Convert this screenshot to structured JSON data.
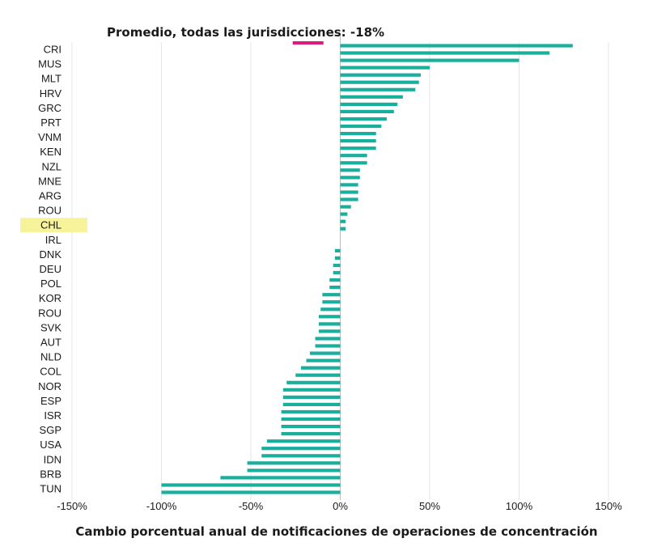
{
  "chart_data": {
    "type": "bar",
    "orientation": "horizontal",
    "title": "Promedio, todas las jurisdicciones: -18%",
    "xlabel": "Cambio porcentual anual de notificaciones de operaciones de concentración",
    "ylabel": "",
    "xlim": [
      -150,
      150
    ],
    "xticks": [
      -150,
      -100,
      -50,
      0,
      50,
      100,
      150
    ],
    "xtick_labels": [
      "-150%",
      "-100%",
      "-50%",
      "0%",
      "50%",
      "100%",
      "150%"
    ],
    "grid": "vertical",
    "legend": "none",
    "average_value": -18,
    "highlighted_category": "CHL",
    "categories": [
      "CRI",
      "MUS",
      "MLT",
      "HRV",
      "GRC",
      "PRT",
      "VNM",
      "KEN",
      "NZL",
      "MNE",
      "ARG",
      "ROU",
      "CHL",
      "IRL",
      "DNK",
      "DEU",
      "POL",
      "KOR",
      "ROU",
      "SVK",
      "AUT",
      "NLD",
      "COL",
      "NOR",
      "ESP",
      "ISR",
      "SGP",
      "USA",
      "IDN",
      "BRB",
      "TUN"
    ],
    "series": [
      {
        "values": [
          [
            130,
            117
          ],
          [
            100,
            50
          ],
          [
            45,
            44
          ],
          [
            42,
            35
          ],
          [
            32,
            30
          ],
          [
            26,
            23
          ],
          [
            20,
            20
          ],
          [
            20,
            15
          ],
          [
            15,
            11
          ],
          [
            11,
            10
          ],
          [
            10,
            10
          ],
          [
            6,
            4
          ],
          [
            3,
            3
          ],
          [
            0,
            0
          ],
          [
            -3,
            -3
          ],
          [
            -4,
            -4
          ],
          [
            -6,
            -6
          ],
          [
            -10,
            -10
          ],
          [
            -11,
            -12
          ],
          [
            -12,
            -12
          ],
          [
            -14,
            -14
          ],
          [
            -17,
            -19
          ],
          [
            -22,
            -25
          ],
          [
            -30,
            -32
          ],
          [
            -32,
            -32
          ],
          [
            -33,
            -33
          ],
          [
            -33,
            -33
          ],
          [
            -41,
            -44
          ],
          [
            -44,
            -52
          ],
          [
            -52,
            -67
          ],
          [
            -100,
            -100
          ]
        ]
      }
    ],
    "colors": {
      "bars": "#1aaf9c",
      "average_marker": "#e0197d",
      "highlight": "#f7f39a",
      "grid": "#e6e6e6",
      "zero_line": "#bdbdbd"
    }
  }
}
